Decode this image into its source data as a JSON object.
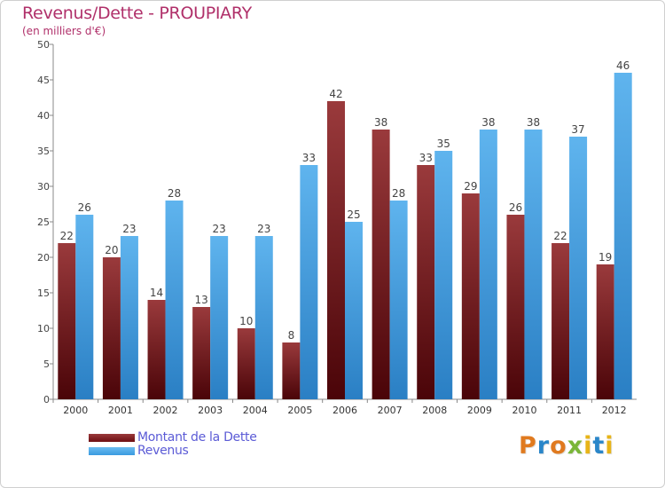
{
  "title": "Revenus/Dette - PROUPIARY",
  "subtitle": "(en milliers d'€)",
  "logo_text": "Proxiti",
  "colors": {
    "dette": "#6e0e12",
    "revenus": "#3a9ae0",
    "title": "#b0306a",
    "legend_text": "#5b5bd6"
  },
  "legend": [
    {
      "label": "Montant de la Dette",
      "color": "#6e0e12"
    },
    {
      "label": "Revenus",
      "color": "#3a9ae0"
    }
  ],
  "chart_data": {
    "type": "bar",
    "title": "Revenus/Dette - PROUPIARY",
    "ylabel": "(en milliers d'€)",
    "xlabel": "",
    "ylim": [
      0,
      50
    ],
    "yticks": [
      0,
      5,
      10,
      15,
      20,
      25,
      30,
      35,
      40,
      45,
      50
    ],
    "categories": [
      "2000",
      "2001",
      "2002",
      "2003",
      "2004",
      "2005",
      "2006",
      "2007",
      "2008",
      "2009",
      "2010",
      "2011",
      "2012"
    ],
    "series": [
      {
        "name": "Montant de la Dette",
        "values": [
          22,
          20,
          14,
          13,
          10,
          8,
          42,
          38,
          33,
          29,
          26,
          22,
          19
        ]
      },
      {
        "name": "Revenus",
        "values": [
          26,
          23,
          28,
          23,
          23,
          33,
          25,
          28,
          35,
          38,
          38,
          37,
          46
        ]
      }
    ],
    "grid": false,
    "legend_position": "bottom-left"
  }
}
